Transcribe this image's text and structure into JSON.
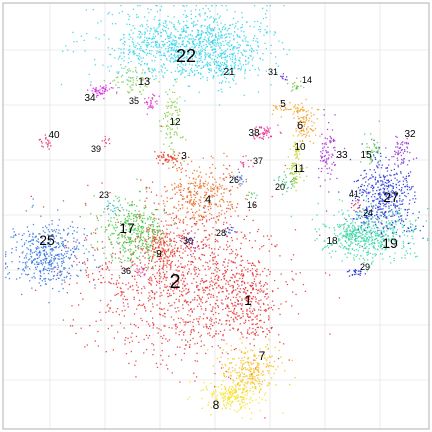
{
  "chart_data": {
    "type": "scatter",
    "title": "",
    "xlabel": "",
    "ylabel": "",
    "grid": true,
    "legend": "none",
    "clusters": [
      {
        "label": "1",
        "color": "#e8262b",
        "center": [
          248,
          300
        ],
        "spread": [
          14,
          22
        ],
        "n": 220,
        "fontsize": 14
      },
      {
        "label": "2",
        "color": "#e53030",
        "center": [
          185,
          280
        ],
        "spread": [
          48,
          40
        ],
        "n": 1300,
        "fontsize": 20
      },
      {
        "label": "3",
        "color": "#e8361a",
        "center": [
          168,
          157
        ],
        "spread": [
          7,
          4
        ],
        "n": 60,
        "fontsize": 10
      },
      {
        "label": "4",
        "color": "#ec6a1f",
        "center": [
          200,
          195
        ],
        "spread": [
          18,
          16
        ],
        "n": 300,
        "fontsize": 11
      },
      {
        "label": "5",
        "color": "#f6a11c",
        "center": [
          292,
          108
        ],
        "spread": [
          10,
          3
        ],
        "n": 50,
        "fontsize": 10
      },
      {
        "label": "6",
        "color": "#f49a1d",
        "center": [
          305,
          125
        ],
        "spread": [
          5,
          9
        ],
        "n": 80,
        "fontsize": 11
      },
      {
        "label": "7",
        "color": "#f6c01b",
        "center": [
          250,
          370
        ],
        "spread": [
          16,
          12
        ],
        "n": 260,
        "fontsize": 12
      },
      {
        "label": "8",
        "color": "#f6e21a",
        "center": [
          232,
          395
        ],
        "spread": [
          14,
          8
        ],
        "n": 200,
        "fontsize": 12
      },
      {
        "label": "9",
        "color": "#e7482a",
        "center": [
          160,
          245
        ],
        "spread": [
          10,
          10
        ],
        "n": 150,
        "fontsize": 10
      },
      {
        "label": "10",
        "color": "#c3d426",
        "center": [
          296,
          150
        ],
        "spread": [
          3,
          8
        ],
        "n": 40,
        "fontsize": 10
      },
      {
        "label": "11",
        "color": "#a9cf28",
        "center": [
          294,
          172
        ],
        "spread": [
          5,
          7
        ],
        "n": 50,
        "fontsize": 11
      },
      {
        "label": "12",
        "color": "#82ce3a",
        "center": [
          172,
          120
        ],
        "spread": [
          6,
          18
        ],
        "n": 90,
        "fontsize": 10
      },
      {
        "label": "13",
        "color": "#7fce49",
        "center": [
          130,
          80
        ],
        "spread": [
          12,
          6
        ],
        "n": 70,
        "fontsize": 11
      },
      {
        "label": "14",
        "color": "#66c43a",
        "center": [
          297,
          86
        ],
        "spread": [
          4,
          3
        ],
        "n": 20,
        "fontsize": 9
      },
      {
        "label": "15",
        "color": "#4ec64d",
        "center": [
          372,
          148
        ],
        "spread": [
          4,
          8
        ],
        "n": 40,
        "fontsize": 10
      },
      {
        "label": "16",
        "color": "#3ec55a",
        "center": [
          250,
          196
        ],
        "spread": [
          4,
          3
        ],
        "n": 10,
        "fontsize": 9
      },
      {
        "label": "17",
        "color": "#3fcc40",
        "center": [
          133,
          230
        ],
        "spread": [
          16,
          15
        ],
        "n": 350,
        "fontsize": 14
      },
      {
        "label": "18",
        "color": "#35d08f",
        "center": [
          350,
          232
        ],
        "spread": [
          6,
          6
        ],
        "n": 60,
        "fontsize": 10
      },
      {
        "label": "19",
        "color": "#34d7a7",
        "center": [
          370,
          235
        ],
        "spread": [
          22,
          13
        ],
        "n": 500,
        "fontsize": 14
      },
      {
        "label": "20",
        "color": "#3ac675",
        "center": [
          285,
          180
        ],
        "spread": [
          5,
          5
        ],
        "n": 30,
        "fontsize": 9
      },
      {
        "label": "21",
        "color": "#28d2e5",
        "center": [
          225,
          65
        ],
        "spread": [
          10,
          7
        ],
        "n": 80,
        "fontsize": 10
      },
      {
        "label": "22",
        "color": "#2fd3ea",
        "center": [
          190,
          45
        ],
        "spread": [
          40,
          18
        ],
        "n": 1100,
        "fontsize": 18
      },
      {
        "label": "23",
        "color": "#2cbbd8",
        "center": [
          113,
          208
        ],
        "spread": [
          4,
          4
        ],
        "n": 20,
        "fontsize": 9
      },
      {
        "label": "24",
        "color": "#2a7be6",
        "center": [
          366,
          214
        ],
        "spread": [
          4,
          3
        ],
        "n": 20,
        "fontsize": 9
      },
      {
        "label": "25",
        "color": "#2f72e2",
        "center": [
          45,
          255
        ],
        "spread": [
          18,
          16
        ],
        "n": 450,
        "fontsize": 14
      },
      {
        "label": "26",
        "color": "#2e6ae0",
        "center": [
          240,
          180
        ],
        "spread": [
          3,
          3
        ],
        "n": 15,
        "fontsize": 9
      },
      {
        "label": "27",
        "color": "#2236d7",
        "center": [
          385,
          195
        ],
        "spread": [
          16,
          20
        ],
        "n": 450,
        "fontsize": 14
      },
      {
        "label": "28",
        "color": "#2336dc",
        "center": [
          228,
          230
        ],
        "spread": [
          3,
          3
        ],
        "n": 12,
        "fontsize": 9
      },
      {
        "label": "29",
        "color": "#1e30d6",
        "center": [
          355,
          272
        ],
        "spread": [
          6,
          2
        ],
        "n": 25,
        "fontsize": 9
      },
      {
        "label": "30",
        "color": "#7f3bd2",
        "center": [
          190,
          240
        ],
        "spread": [
          5,
          5
        ],
        "n": 20,
        "fontsize": 9
      },
      {
        "label": "31",
        "color": "#5a2ed4",
        "center": [
          283,
          77
        ],
        "spread": [
          3,
          2
        ],
        "n": 10,
        "fontsize": 9
      },
      {
        "label": "32",
        "color": "#9a2fd5",
        "center": [
          400,
          150
        ],
        "spread": [
          5,
          8
        ],
        "n": 50,
        "fontsize": 10
      },
      {
        "label": "33",
        "color": "#a424d8",
        "center": [
          328,
          150
        ],
        "spread": [
          5,
          16
        ],
        "n": 80,
        "fontsize": 10
      },
      {
        "label": "34",
        "color": "#d81ee0",
        "center": [
          100,
          90
        ],
        "spread": [
          5,
          3
        ],
        "n": 50,
        "fontsize": 10
      },
      {
        "label": "35",
        "color": "#e22ad0",
        "center": [
          150,
          102
        ],
        "spread": [
          4,
          4
        ],
        "n": 30,
        "fontsize": 9
      },
      {
        "label": "36",
        "color": "#e336a0",
        "center": [
          140,
          270
        ],
        "spread": [
          4,
          4
        ],
        "n": 15,
        "fontsize": 9
      },
      {
        "label": "37",
        "color": "#e6307f",
        "center": [
          243,
          163
        ],
        "spread": [
          3,
          4
        ],
        "n": 15,
        "fontsize": 9
      },
      {
        "label": "38",
        "color": "#e82d8f",
        "center": [
          264,
          133
        ],
        "spread": [
          5,
          4
        ],
        "n": 50,
        "fontsize": 10
      },
      {
        "label": "39",
        "color": "#e7305c",
        "center": [
          105,
          140
        ],
        "spread": [
          2,
          3
        ],
        "n": 10,
        "fontsize": 9
      },
      {
        "label": "40",
        "color": "#e61f6a",
        "center": [
          45,
          143
        ],
        "spread": [
          3,
          3
        ],
        "n": 20,
        "fontsize": 10
      },
      {
        "label": "41",
        "color": "#e22e4e",
        "center": [
          356,
          205
        ],
        "spread": [
          3,
          3
        ],
        "n": 12,
        "fontsize": 9
      }
    ]
  }
}
